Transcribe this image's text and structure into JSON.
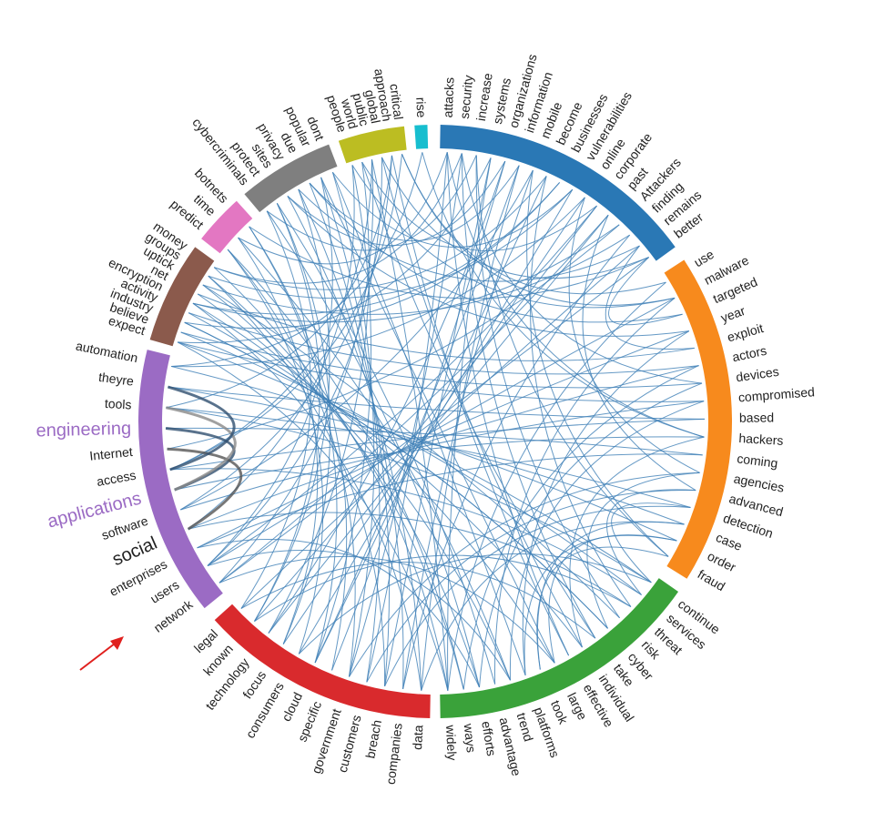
{
  "chart_data": {
    "type": "chord",
    "title": "",
    "groups": [
      {
        "color": "#2a78b5",
        "start_deg": 1,
        "end_deg": 54,
        "words": [
          "attacks",
          "security",
          "increase",
          "systems",
          "organizations",
          "information",
          "mobile",
          "become",
          "businesses",
          "vulnerabilities",
          "online",
          "corporate",
          "past",
          "Attackers",
          "finding",
          "remains",
          "better"
        ]
      },
      {
        "color": "#f78a1d",
        "start_deg": 57,
        "end_deg": 122,
        "words": [
          "use",
          "malware",
          "targeted",
          "year",
          "exploit",
          "actors",
          "devices",
          "compromised",
          "based",
          "hackers",
          "coming",
          "agencies",
          "advanced",
          "detection",
          "case",
          "order",
          "fraud"
        ]
      },
      {
        "color": "#3aa23a",
        "start_deg": 125,
        "end_deg": 179,
        "words": [
          "continue",
          "services",
          "threat",
          "risk",
          "cyber",
          "take",
          "individual",
          "effective",
          "large",
          "took",
          "platforms",
          "trend",
          "advantage",
          "efforts",
          "ways",
          "widely"
        ]
      },
      {
        "color": "#d92a2d",
        "start_deg": 181,
        "end_deg": 228,
        "words": [
          "data",
          "companies",
          "breach",
          "customers",
          "government",
          "specific",
          "cloud",
          "consumers",
          "focus",
          "technology",
          "known",
          "legal"
        ]
      },
      {
        "color": "#9b6bc4",
        "start_deg": 231,
        "end_deg": 284,
        "words": [
          "network",
          "users",
          "enterprises",
          "social",
          "software",
          "applications",
          "access",
          "Internet",
          "engineering",
          "tools",
          "theyre",
          "automation"
        ]
      },
      {
        "color": "#8b5a4c",
        "start_deg": 286,
        "end_deg": 306,
        "words": [
          "expect",
          "believe",
          "industry",
          "activity",
          "encryption",
          "net",
          "uptick",
          "groups",
          "money"
        ]
      },
      {
        "color": "#e377c2",
        "start_deg": 308,
        "end_deg": 318,
        "words": [
          "predict",
          "time",
          "botnets"
        ]
      },
      {
        "color": "#7f7f7f",
        "start_deg": 320,
        "end_deg": 339,
        "words": [
          "cybercriminals",
          "protect",
          "sites",
          "privacy",
          "due",
          "popular",
          "dont"
        ]
      },
      {
        "color": "#bcbd22",
        "start_deg": 341,
        "end_deg": 354,
        "words": [
          "people",
          "world",
          "public",
          "global",
          "approach",
          "critical"
        ]
      },
      {
        "color": "#17becf",
        "start_deg": 356,
        "end_deg": 358.5,
        "words": [
          "rise"
        ]
      }
    ],
    "highlighted_words": [
      "engineering",
      "applications",
      "social"
    ],
    "highlight_color": "#9b6bc4",
    "links": [
      [
        "attacks",
        "hackers"
      ],
      [
        "security",
        "devices"
      ],
      [
        "increase",
        "fraud"
      ],
      [
        "systems",
        "widely"
      ],
      [
        "organizations",
        "technology"
      ],
      [
        "information",
        "cloud"
      ],
      [
        "mobile",
        "software"
      ],
      [
        "become",
        "money"
      ],
      [
        "businesses",
        "encryption"
      ],
      [
        "vulnerabilities",
        "groups"
      ],
      [
        "online",
        "automation"
      ],
      [
        "corporate",
        "users"
      ],
      [
        "past",
        "network"
      ],
      [
        "Attackers",
        "internet"
      ],
      [
        "finding",
        "companies"
      ],
      [
        "remains",
        "privacy"
      ],
      [
        "better",
        "botnets"
      ],
      [
        "use",
        "critical"
      ],
      [
        "malware",
        "people"
      ],
      [
        "targeted",
        "due"
      ],
      [
        "year",
        "sites"
      ],
      [
        "exploit",
        "net"
      ],
      [
        "actors",
        "activity"
      ],
      [
        "devices",
        "believe"
      ],
      [
        "compromised",
        "expect"
      ],
      [
        "based",
        "theyre"
      ],
      [
        "hackers",
        "applications"
      ],
      [
        "coming",
        "enterprises"
      ],
      [
        "agencies",
        "government"
      ],
      [
        "advanced",
        "customers"
      ],
      [
        "detection",
        "breach"
      ],
      [
        "case",
        "data"
      ],
      [
        "order",
        "platforms"
      ],
      [
        "fraud",
        "took"
      ],
      [
        "continue",
        "tools"
      ],
      [
        "services",
        "access"
      ],
      [
        "threat",
        "social"
      ],
      [
        "risk",
        "uptick"
      ],
      [
        "cyber",
        "industry"
      ],
      [
        "take",
        "world"
      ],
      [
        "individual",
        "global"
      ],
      [
        "effective",
        "approach"
      ],
      [
        "large",
        "popular"
      ],
      [
        "platforms",
        "dont"
      ],
      [
        "trend",
        "time"
      ],
      [
        "advantage",
        "protect"
      ],
      [
        "efforts",
        "cybercriminals"
      ],
      [
        "ways",
        "predict"
      ],
      [
        "widely",
        "public"
      ],
      [
        "data",
        "information"
      ],
      [
        "companies",
        "mobile"
      ],
      [
        "breach",
        "systems"
      ],
      [
        "customers",
        "attacks"
      ],
      [
        "government",
        "security"
      ],
      [
        "specific",
        "organizations"
      ],
      [
        "cloud",
        "become"
      ],
      [
        "consumers",
        "vulnerabilities"
      ],
      [
        "focus",
        "online"
      ],
      [
        "technology",
        "past"
      ],
      [
        "known",
        "corporate"
      ],
      [
        "legal",
        "remains"
      ],
      [
        "network",
        "better"
      ],
      [
        "users",
        "malware"
      ],
      [
        "enterprises",
        "year"
      ],
      [
        "social",
        "actors"
      ],
      [
        "software",
        "compromised"
      ],
      [
        "access",
        "based"
      ],
      [
        "engineering",
        "coming"
      ],
      [
        "tools",
        "detection"
      ],
      [
        "theyre",
        "case"
      ],
      [
        "automation",
        "order"
      ],
      [
        "expect",
        "continue"
      ],
      [
        "believe",
        "services"
      ],
      [
        "industry",
        "cyber"
      ],
      [
        "activity",
        "individual"
      ],
      [
        "encryption",
        "large"
      ],
      [
        "net",
        "trend"
      ],
      [
        "uptick",
        "efforts"
      ],
      [
        "groups",
        "ways"
      ],
      [
        "money",
        "widely"
      ],
      [
        "predict",
        "consumers"
      ],
      [
        "time",
        "focus"
      ],
      [
        "botnets",
        "specific"
      ],
      [
        "cybercriminals",
        "legal"
      ],
      [
        "protect",
        "known"
      ],
      [
        "sites",
        "data"
      ],
      [
        "privacy",
        "companies"
      ],
      [
        "due",
        "breach"
      ],
      [
        "popular",
        "customers"
      ],
      [
        "dont",
        "government"
      ],
      [
        "people",
        "cloud"
      ],
      [
        "world",
        "technology"
      ],
      [
        "public",
        "network"
      ],
      [
        "global",
        "users"
      ],
      [
        "approach",
        "software"
      ],
      [
        "critical",
        "access"
      ],
      [
        "rise",
        "hackers"
      ],
      [
        "attacks",
        "effective"
      ],
      [
        "security",
        "take"
      ],
      [
        "increase",
        "risk"
      ],
      [
        "become",
        "threat"
      ],
      [
        "mobile",
        "fraud"
      ],
      [
        "online",
        "agencies"
      ],
      [
        "past",
        "advanced"
      ],
      [
        "remains",
        "exploit"
      ],
      [
        "better",
        "targeted"
      ],
      [
        "use",
        "widely"
      ],
      [
        "malware",
        "advantage"
      ],
      [
        "year",
        "platforms"
      ],
      [
        "actors",
        "ways"
      ],
      [
        "devices",
        "efforts"
      ],
      [
        "compromised",
        "trend"
      ],
      [
        "hackers",
        "individual"
      ],
      [
        "agencies",
        "cyber"
      ],
      [
        "advanced",
        "services"
      ],
      [
        "detection",
        "continue"
      ],
      [
        "case",
        "took"
      ],
      [
        "order",
        "large"
      ],
      [
        "continue",
        "consumers"
      ],
      [
        "threat",
        "known"
      ],
      [
        "take",
        "legal"
      ],
      [
        "large",
        "network"
      ],
      [
        "trend",
        "users"
      ],
      [
        "efforts",
        "enterprises"
      ],
      [
        "widely",
        "expect"
      ],
      [
        "data",
        "encryption"
      ],
      [
        "breach",
        "groups"
      ],
      [
        "government",
        "predict"
      ],
      [
        "cloud",
        "botnets"
      ],
      [
        "focus",
        "protect"
      ],
      [
        "known",
        "privacy"
      ],
      [
        "users",
        "popular"
      ],
      [
        "social",
        "people"
      ],
      [
        "access",
        "public"
      ],
      [
        "tools",
        "approach"
      ],
      [
        "automation",
        "rise"
      ],
      [
        "expect",
        "systems"
      ],
      [
        "industry",
        "businesses"
      ],
      [
        "encryption",
        "Attackers"
      ],
      [
        "uptick",
        "finding"
      ],
      [
        "money",
        "security"
      ],
      [
        "time",
        "attacks"
      ],
      [
        "cybercriminals",
        "increase"
      ],
      [
        "sites",
        "organizations"
      ],
      [
        "due",
        "information"
      ],
      [
        "dont",
        "vulnerabilities"
      ],
      [
        "world",
        "corporate"
      ],
      [
        "global",
        "better"
      ],
      [
        "critical",
        "malware"
      ]
    ],
    "internal_links": [
      [
        "engineering",
        "applications",
        "#2f4f6f"
      ],
      [
        "Internet",
        "social",
        "#555555"
      ],
      [
        "tools",
        "applications",
        "#888888"
      ],
      [
        "theyre",
        "access",
        "#2f4f6f"
      ]
    ]
  },
  "annotation": {
    "arrow_color": "#e0201e",
    "points_to": "social"
  }
}
